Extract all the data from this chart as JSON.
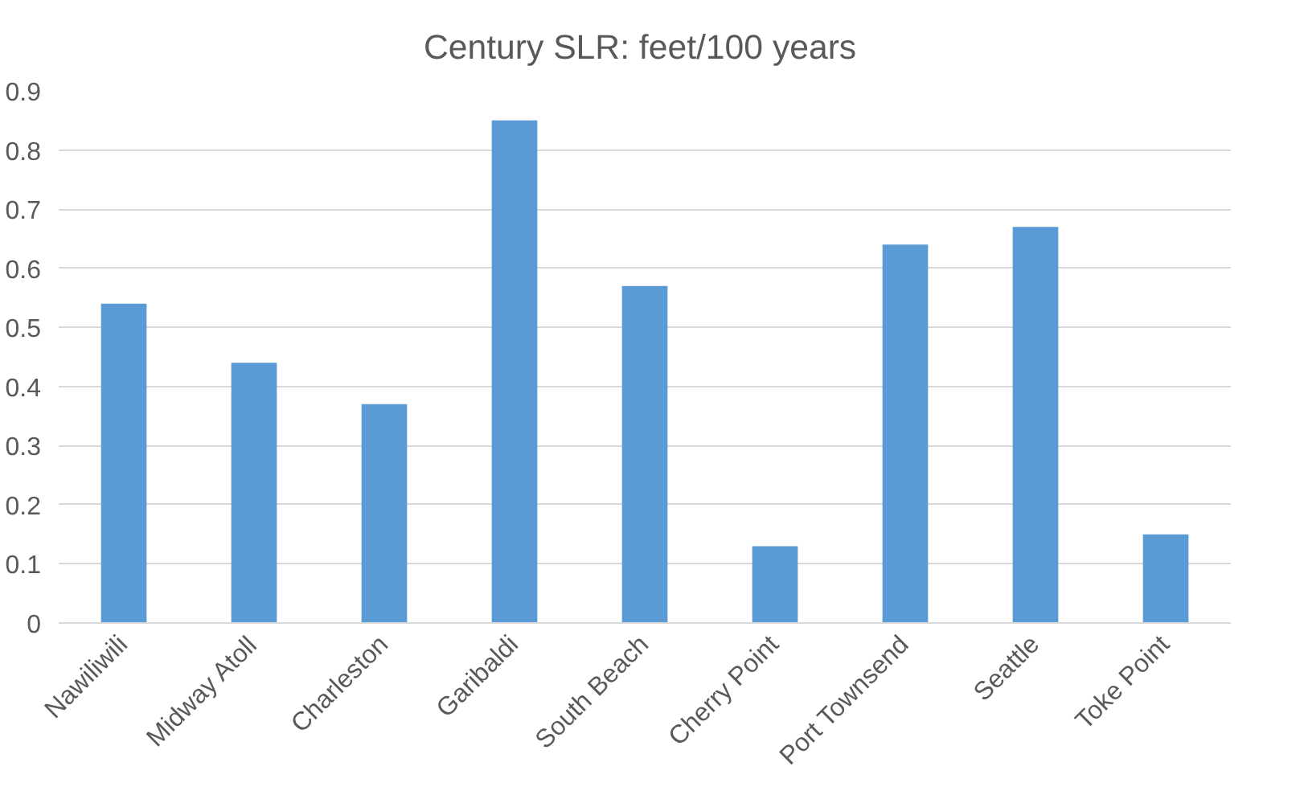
{
  "chart_data": {
    "type": "bar",
    "title": "Century SLR:  feet/100 years",
    "categories": [
      "Nawiliwili",
      "Midway Atoll",
      "Charleston",
      "Garibaldi",
      "South Beach",
      "Cherry Point",
      "Port Townsend",
      "Seattle",
      "Toke Point"
    ],
    "values": [
      0.54,
      0.44,
      0.37,
      0.85,
      0.57,
      0.13,
      0.64,
      0.67,
      0.15
    ],
    "color": "#5b9bd5",
    "ylim": [
      0,
      0.9
    ],
    "yticks": [
      0,
      0.1,
      0.2,
      0.3,
      0.4,
      0.5,
      0.6,
      0.7,
      0.8,
      0.9
    ],
    "grid": "y"
  }
}
